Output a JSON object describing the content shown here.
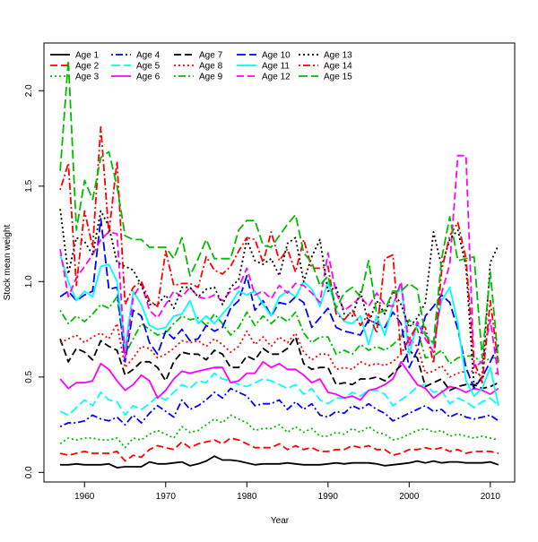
{
  "chart_data": {
    "type": "line",
    "title": "",
    "xlabel": "Year",
    "ylabel": "Stock mean weight",
    "xlim": [
      1955,
      2013
    ],
    "ylim": [
      -0.05,
      2.25
    ],
    "x_ticks": [
      1960,
      1970,
      1980,
      1990,
      2000,
      2010
    ],
    "x_tick_labels": [
      "1960",
      "1970",
      "1980",
      "1990",
      "2000",
      "2010"
    ],
    "y_ticks": [
      0.0,
      0.5,
      1.0,
      1.5,
      2.0
    ],
    "y_tick_labels": [
      "0.0",
      "0.5",
      "1.0",
      "1.5",
      "2.0"
    ],
    "legend_position": "top-left",
    "x": [
      1957,
      1958,
      1959,
      1960,
      1961,
      1962,
      1963,
      1964,
      1965,
      1966,
      1967,
      1968,
      1969,
      1970,
      1971,
      1972,
      1973,
      1974,
      1975,
      1976,
      1977,
      1978,
      1979,
      1980,
      1981,
      1982,
      1983,
      1984,
      1985,
      1986,
      1987,
      1988,
      1989,
      1990,
      1991,
      1992,
      1993,
      1994,
      1995,
      1996,
      1997,
      1998,
      1999,
      2000,
      2001,
      2002,
      2003,
      2004,
      2005,
      2006,
      2007,
      2008,
      2009,
      2010,
      2011
    ],
    "series": [
      {
        "name": "Age 1",
        "color": "#000000",
        "dash": "solid",
        "values": [
          0.04,
          0.04,
          0.045,
          0.04,
          0.04,
          0.04,
          0.045,
          0.025,
          0.03,
          0.03,
          0.03,
          0.055,
          0.045,
          0.045,
          0.05,
          0.055,
          0.035,
          0.045,
          0.06,
          0.085,
          0.065,
          0.065,
          0.06,
          0.05,
          0.04,
          0.045,
          0.045,
          0.045,
          0.05,
          0.045,
          0.04,
          0.04,
          0.04,
          0.045,
          0.05,
          0.045,
          0.05,
          0.05,
          0.05,
          0.045,
          0.035,
          0.04,
          0.045,
          0.05,
          0.06,
          0.05,
          0.06,
          0.05,
          0.055,
          0.055,
          0.05,
          0.05,
          0.05,
          0.055,
          0.04
        ]
      },
      {
        "name": "Age 2",
        "color": "#ff0000",
        "dash": "dashed",
        "values": [
          0.1,
          0.09,
          0.1,
          0.11,
          0.1,
          0.1,
          0.1,
          0.11,
          0.06,
          0.09,
          0.08,
          0.12,
          0.14,
          0.13,
          0.12,
          0.16,
          0.13,
          0.15,
          0.16,
          0.17,
          0.15,
          0.18,
          0.17,
          0.15,
          0.13,
          0.13,
          0.13,
          0.15,
          0.12,
          0.14,
          0.12,
          0.13,
          0.11,
          0.11,
          0.12,
          0.12,
          0.14,
          0.13,
          0.14,
          0.12,
          0.12,
          0.09,
          0.1,
          0.12,
          0.12,
          0.13,
          0.12,
          0.13,
          0.11,
          0.12,
          0.1,
          0.11,
          0.11,
          0.11,
          0.1
        ]
      },
      {
        "name": "Age 3",
        "color": "#00bb00",
        "dash": "dotted",
        "values": [
          0.15,
          0.18,
          0.17,
          0.18,
          0.18,
          0.17,
          0.17,
          0.18,
          0.13,
          0.18,
          0.17,
          0.2,
          0.22,
          0.2,
          0.18,
          0.24,
          0.21,
          0.22,
          0.25,
          0.28,
          0.26,
          0.3,
          0.28,
          0.26,
          0.22,
          0.23,
          0.23,
          0.25,
          0.21,
          0.24,
          0.21,
          0.23,
          0.19,
          0.19,
          0.21,
          0.2,
          0.23,
          0.21,
          0.24,
          0.21,
          0.2,
          0.17,
          0.18,
          0.2,
          0.22,
          0.23,
          0.21,
          0.22,
          0.19,
          0.2,
          0.19,
          0.18,
          0.19,
          0.18,
          0.17
        ]
      },
      {
        "name": "Age 4",
        "color": "#0000ff",
        "dash": "dashdot",
        "values": [
          0.24,
          0.26,
          0.26,
          0.27,
          0.3,
          0.28,
          0.27,
          0.29,
          0.25,
          0.3,
          0.26,
          0.31,
          0.35,
          0.32,
          0.29,
          0.38,
          0.33,
          0.35,
          0.38,
          0.42,
          0.39,
          0.44,
          0.42,
          0.4,
          0.35,
          0.36,
          0.36,
          0.38,
          0.33,
          0.37,
          0.33,
          0.36,
          0.3,
          0.29,
          0.32,
          0.31,
          0.35,
          0.33,
          0.36,
          0.33,
          0.31,
          0.27,
          0.29,
          0.31,
          0.33,
          0.35,
          0.32,
          0.33,
          0.29,
          0.31,
          0.29,
          0.28,
          0.29,
          0.3,
          0.27
        ]
      },
      {
        "name": "Age 5",
        "color": "#00ffff",
        "dash": "longdash",
        "values": [
          0.32,
          0.3,
          0.34,
          0.38,
          0.35,
          0.42,
          0.38,
          0.37,
          0.3,
          0.35,
          0.33,
          0.36,
          0.4,
          0.38,
          0.42,
          0.46,
          0.44,
          0.48,
          0.47,
          0.52,
          0.49,
          0.48,
          0.46,
          0.45,
          0.47,
          0.49,
          0.48,
          0.46,
          0.44,
          0.46,
          0.41,
          0.44,
          0.38,
          0.36,
          0.39,
          0.39,
          0.42,
          0.4,
          0.43,
          0.43,
          0.41,
          0.35,
          0.38,
          0.41,
          0.45,
          0.46,
          0.42,
          0.43,
          0.36,
          0.39,
          0.37,
          0.34,
          0.37,
          0.39,
          0.35
        ]
      },
      {
        "name": "Age 6",
        "color": "#ff00ff",
        "dash": "solid",
        "values": [
          0.49,
          0.44,
          0.47,
          0.47,
          0.48,
          0.57,
          0.54,
          0.48,
          0.43,
          0.46,
          0.51,
          0.48,
          0.39,
          0.43,
          0.49,
          0.53,
          0.52,
          0.53,
          0.54,
          0.55,
          0.55,
          0.47,
          0.48,
          0.52,
          0.52,
          0.58,
          0.55,
          0.57,
          0.54,
          0.54,
          0.51,
          0.47,
          0.49,
          0.42,
          0.41,
          0.39,
          0.4,
          0.38,
          0.43,
          0.44,
          0.46,
          0.49,
          0.58,
          0.52,
          0.46,
          0.44,
          0.39,
          0.42,
          0.45,
          0.44,
          0.42,
          0.44,
          0.43,
          0.41,
          0.44
        ]
      },
      {
        "name": "Age 7",
        "color": "#000000",
        "dash": "dashed",
        "values": [
          0.7,
          0.58,
          0.65,
          0.63,
          0.59,
          0.69,
          0.66,
          0.64,
          0.51,
          0.54,
          0.58,
          0.58,
          0.55,
          0.48,
          0.58,
          0.63,
          0.62,
          0.62,
          0.59,
          0.64,
          0.62,
          0.55,
          0.55,
          0.61,
          0.59,
          0.65,
          0.62,
          0.62,
          0.65,
          0.71,
          0.57,
          0.54,
          0.55,
          0.55,
          0.46,
          0.47,
          0.46,
          0.49,
          0.49,
          0.5,
          0.48,
          0.52,
          0.56,
          0.64,
          0.6,
          0.45,
          0.47,
          0.49,
          0.43,
          0.45,
          0.46,
          0.46,
          0.44,
          0.45,
          0.47
        ]
      },
      {
        "name": "Age 8",
        "color": "#ff0000",
        "dash": "dotted",
        "values": [
          0.68,
          0.7,
          0.72,
          0.68,
          0.71,
          0.73,
          0.7,
          0.78,
          0.55,
          0.6,
          0.66,
          0.65,
          0.6,
          0.62,
          0.65,
          0.69,
          0.68,
          0.69,
          0.66,
          0.7,
          0.67,
          0.63,
          0.66,
          0.74,
          0.67,
          0.71,
          0.66,
          0.71,
          0.68,
          0.73,
          0.63,
          0.59,
          0.62,
          0.62,
          0.54,
          0.55,
          0.54,
          0.58,
          0.56,
          0.57,
          0.56,
          0.58,
          0.62,
          0.7,
          0.66,
          0.52,
          0.53,
          0.56,
          0.5,
          0.52,
          0.53,
          0.53,
          0.5,
          0.52,
          0.52
        ]
      },
      {
        "name": "Age 9",
        "color": "#00bb00",
        "dash": "dashdot",
        "values": [
          0.85,
          0.78,
          0.82,
          0.79,
          0.83,
          0.88,
          0.86,
          0.92,
          0.62,
          0.7,
          0.78,
          0.75,
          0.72,
          0.73,
          0.78,
          0.82,
          0.8,
          0.81,
          0.77,
          0.83,
          0.78,
          0.72,
          0.76,
          0.84,
          0.77,
          0.82,
          0.78,
          0.82,
          0.79,
          0.84,
          0.73,
          0.68,
          0.71,
          0.71,
          0.62,
          0.64,
          0.62,
          0.67,
          0.64,
          0.66,
          0.64,
          0.67,
          0.71,
          0.8,
          0.75,
          0.6,
          0.61,
          0.64,
          0.57,
          0.6,
          0.61,
          0.61,
          0.57,
          0.6,
          0.6
        ]
      },
      {
        "name": "Age 10",
        "color": "#0000ff",
        "dash": "longdash",
        "values": [
          0.92,
          0.95,
          0.9,
          0.93,
          0.95,
          1.33,
          0.96,
          0.97,
          0.58,
          0.85,
          0.82,
          0.68,
          0.62,
          0.74,
          0.7,
          0.75,
          0.69,
          0.7,
          0.77,
          0.74,
          0.76,
          0.86,
          0.9,
          1.03,
          0.85,
          0.9,
          0.82,
          0.89,
          0.88,
          0.92,
          0.89,
          0.76,
          0.81,
          0.86,
          0.76,
          0.74,
          0.73,
          0.72,
          0.8,
          0.78,
          0.76,
          0.84,
          0.78,
          0.55,
          0.64,
          0.82,
          0.87,
          0.93,
          0.89,
          0.75,
          0.55,
          0.44,
          0.5,
          0.58,
          0.67
        ]
      },
      {
        "name": "Age 11",
        "color": "#00ffff",
        "dash": "solid",
        "values": [
          1.14,
          1.0,
          0.9,
          0.95,
          0.92,
          1.08,
          1.09,
          1.0,
          0.65,
          0.95,
          0.88,
          0.77,
          0.75,
          0.76,
          0.82,
          0.83,
          0.9,
          0.78,
          0.82,
          0.78,
          0.83,
          0.88,
          0.95,
          0.93,
          0.95,
          0.88,
          0.82,
          0.92,
          0.95,
          0.92,
          1.0,
          0.96,
          0.87,
          1.0,
          0.85,
          0.79,
          0.78,
          0.82,
          0.67,
          0.82,
          0.72,
          0.88,
          0.98,
          0.62,
          0.78,
          0.72,
          0.67,
          0.9,
          0.97,
          0.78,
          0.48,
          0.4,
          0.44,
          0.55,
          0.35
        ]
      },
      {
        "name": "Age 12",
        "color": "#ff00ff",
        "dash": "dashed",
        "values": [
          1.17,
          0.92,
          1.02,
          1.08,
          1.14,
          1.22,
          1.26,
          1.25,
          0.6,
          0.92,
          0.99,
          0.85,
          0.81,
          0.88,
          0.95,
          0.92,
          0.97,
          0.92,
          0.91,
          0.93,
          0.9,
          0.95,
          0.97,
          1.07,
          0.93,
          0.95,
          0.91,
          0.98,
          0.94,
          0.99,
          0.98,
          0.94,
          0.89,
          1.15,
          0.94,
          0.85,
          0.88,
          0.92,
          0.87,
          0.94,
          0.88,
          0.87,
          1.0,
          0.66,
          0.79,
          0.7,
          0.63,
          0.94,
          1.09,
          1.66,
          1.66,
          0.55,
          0.58,
          0.8,
          0.5
        ]
      },
      {
        "name": "Age 13",
        "color": "#000000",
        "dash": "dotted",
        "values": [
          1.38,
          1.04,
          1.23,
          1.21,
          1.14,
          1.37,
          1.29,
          1.1,
          1.08,
          1.06,
          0.98,
          0.88,
          0.88,
          0.93,
          0.86,
          0.97,
          0.97,
          0.92,
          0.96,
          0.97,
          0.88,
          0.97,
          1.01,
          1.22,
          1.11,
          1.09,
          1.12,
          1.03,
          1.2,
          1.23,
          1.0,
          1.13,
          1.22,
          0.95,
          0.97,
          0.83,
          0.82,
          0.95,
          0.78,
          0.9,
          0.83,
          0.95,
          0.88,
          0.76,
          0.81,
          0.89,
          1.26,
          1.08,
          1.22,
          1.27,
          1.08,
          0.45,
          0.5,
          1.1,
          1.19
        ]
      },
      {
        "name": "Age 14",
        "color": "#ff0000",
        "dash": "dashdot",
        "values": [
          1.48,
          1.62,
          0.98,
          1.37,
          1.18,
          1.81,
          1.25,
          1.63,
          0.88,
          0.97,
          1.0,
          0.9,
          0.87,
          1.16,
          0.98,
          0.99,
          0.99,
          0.97,
          1.13,
          1.06,
          1.04,
          1.08,
          1.16,
          1.23,
          1.22,
          1.1,
          1.26,
          1.11,
          1.17,
          1.05,
          1.22,
          1.07,
          1.07,
          1.08,
          0.83,
          0.8,
          0.85,
          0.77,
          0.83,
          0.73,
          1.12,
          1.14,
          0.62,
          0.7,
          0.77,
          0.76,
          0.57,
          1.06,
          1.24,
          1.31,
          1.12,
          0.58,
          0.47,
          0.9,
          0.56
        ]
      },
      {
        "name": "Age 15",
        "color": "#00bb00",
        "dash": "longdash",
        "values": [
          1.58,
          2.16,
          1.27,
          1.53,
          1.43,
          1.65,
          1.68,
          1.5,
          1.24,
          1.22,
          1.22,
          1.18,
          1.18,
          1.18,
          1.12,
          1.23,
          1.03,
          1.12,
          1.22,
          1.12,
          1.12,
          1.12,
          1.27,
          1.32,
          1.32,
          1.19,
          1.18,
          1.24,
          1.3,
          1.35,
          1.15,
          1.1,
          0.98,
          1.03,
          0.86,
          0.94,
          0.97,
          0.92,
          1.11,
          0.83,
          0.85,
          0.95,
          0.95,
          0.99,
          0.96,
          0.72,
          0.68,
          1.12,
          1.34,
          1.11,
          1.12,
          1.13,
          0.6,
          1.05,
          0.58
        ]
      }
    ]
  }
}
